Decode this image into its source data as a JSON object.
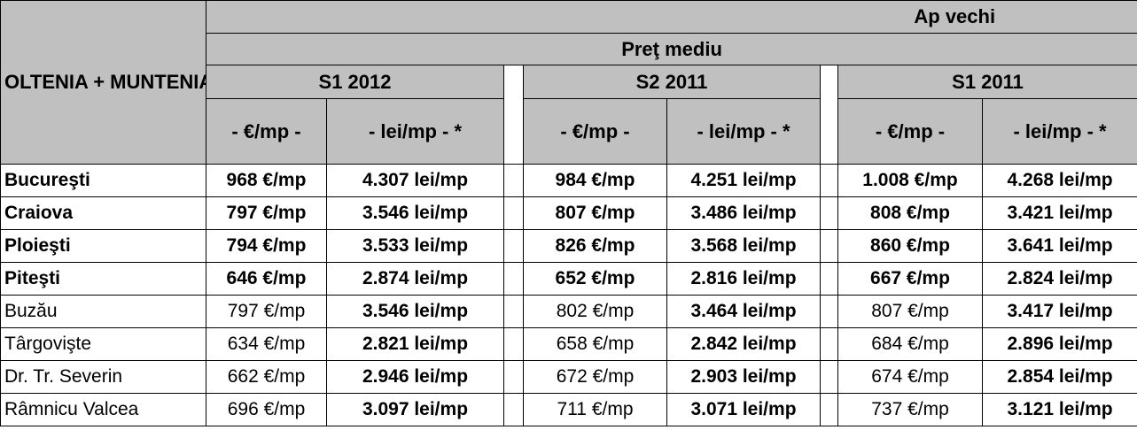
{
  "header": {
    "region": "OLTENIA + MUNTENIA",
    "group": "Ap vechi",
    "subgroup": "Preţ mediu",
    "periods": [
      "S1 2012",
      "S2 2011",
      "S1 2011"
    ],
    "units": [
      "- €/mp -",
      "- lei/mp - *",
      "- €/mp -",
      "- lei/mp - *",
      "- €/mp -",
      "- lei/mp - *"
    ]
  },
  "table": {
    "rows": [
      [
        "Bucureşti",
        "968 €/mp",
        "4.307 lei/mp",
        "984 €/mp",
        "4.251 lei/mp",
        "1.008 €/mp",
        "4.268 lei/mp"
      ],
      [
        "Craiova",
        "797 €/mp",
        "3.546 lei/mp",
        "807 €/mp",
        "3.486 lei/mp",
        "808 €/mp",
        "3.421 lei/mp"
      ],
      [
        "Ploieşti",
        "794 €/mp",
        "3.533 lei/mp",
        "826 €/mp",
        "3.568 lei/mp",
        "860 €/mp",
        "3.641 lei/mp"
      ],
      [
        "Piteşti",
        "646 €/mp",
        "2.874 lei/mp",
        "652 €/mp",
        "2.816 lei/mp",
        "667 €/mp",
        "2.824 lei/mp"
      ],
      [
        "Buzău",
        "797 €/mp",
        "3.546 lei/mp",
        "802 €/mp",
        "3.464 lei/mp",
        "807 €/mp",
        "3.417 lei/mp"
      ],
      [
        "Târgovişte",
        "634 €/mp",
        "2.821 lei/mp",
        "658 €/mp",
        "2.842 lei/mp",
        "684 €/mp",
        "2.896 lei/mp"
      ],
      [
        "Dr. Tr. Severin",
        "662 €/mp",
        "2.946 lei/mp",
        "672 €/mp",
        "2.903 lei/mp",
        "674 €/mp",
        "2.854 lei/mp"
      ],
      [
        "Râmnicu Valcea",
        "696 €/mp",
        "3.097 lei/mp",
        "711 €/mp",
        "3.071 lei/mp",
        "737 €/mp",
        "3.121 lei/mp"
      ]
    ]
  }
}
